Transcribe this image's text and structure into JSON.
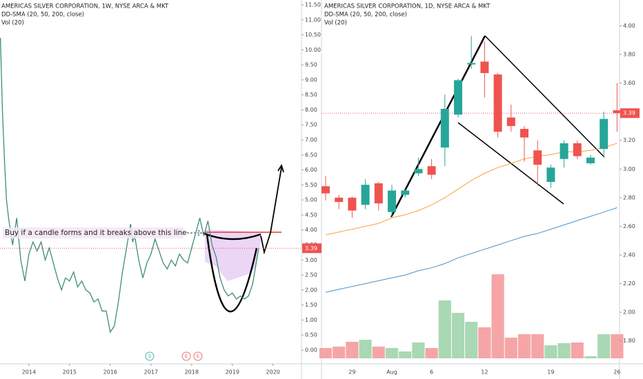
{
  "chart_data": [
    {
      "type": "line",
      "title": "AMERICAS SILVER CORPORATION, 1W, NYSE ARCA & MKT",
      "subtitle": "DD-SMA (20, 50, 200, close)",
      "indicator": "Vol (20)",
      "annotation": "Buy if a candle forms and it breaks above this line",
      "event_markers": [
        "S",
        "E",
        "E"
      ],
      "color": "#3d8c7a",
      "x": [
        2013.3,
        2013.35,
        2013.4,
        2013.45,
        2013.5,
        2013.6,
        2013.7,
        2013.8,
        2013.9,
        2014.0,
        2014.1,
        2014.2,
        2014.3,
        2014.4,
        2014.5,
        2014.6,
        2014.7,
        2014.8,
        2014.9,
        2015.0,
        2015.1,
        2015.2,
        2015.3,
        2015.4,
        2015.5,
        2015.6,
        2015.7,
        2015.8,
        2015.9,
        2016.0,
        2016.1,
        2016.2,
        2016.3,
        2016.4,
        2016.5,
        2016.55,
        2016.6,
        2016.7,
        2016.8,
        2016.9,
        2017.0,
        2017.1,
        2017.2,
        2017.3,
        2017.4,
        2017.5,
        2017.6,
        2017.7,
        2017.8,
        2017.9,
        2018.0,
        2018.1,
        2018.2,
        2018.25,
        2018.3,
        2018.4,
        2018.5,
        2018.6,
        2018.7,
        2018.8,
        2018.9,
        2019.0,
        2019.1,
        2019.2,
        2019.3,
        2019.4,
        2019.5,
        2019.6,
        2019.65
      ],
      "values": [
        10.4,
        8.0,
        6.3,
        5.0,
        4.4,
        3.5,
        4.4,
        3.0,
        2.3,
        3.2,
        3.6,
        3.3,
        3.6,
        3.0,
        3.4,
        2.9,
        2.4,
        2.0,
        2.4,
        2.3,
        2.6,
        2.1,
        2.3,
        2.0,
        1.9,
        1.6,
        1.7,
        1.3,
        1.3,
        0.6,
        0.8,
        1.6,
        2.6,
        3.4,
        4.2,
        3.6,
        3.8,
        3.0,
        2.4,
        2.9,
        3.2,
        3.7,
        3.3,
        2.9,
        2.7,
        3.0,
        2.8,
        3.2,
        3.0,
        2.9,
        3.4,
        3.9,
        4.4,
        4.1,
        3.8,
        4.3,
        3.5,
        3.1,
        2.4,
        2.0,
        1.8,
        1.9,
        1.7,
        1.8,
        1.7,
        1.8,
        2.2,
        3.0,
        3.39
      ],
      "xlim": [
        2013.29,
        2020.7
      ],
      "xticks": [
        2014,
        2015,
        2016,
        2017,
        2018,
        2019,
        2020
      ],
      "ylim": [
        -0.46,
        11.66
      ],
      "yticks": [
        {
          "value": 11.5,
          "label": "11.50"
        },
        {
          "value": 11,
          "label": "11.00"
        },
        {
          "value": 10.5,
          "label": "10.50"
        },
        {
          "value": 10,
          "label": "10.00"
        },
        {
          "value": 9.5,
          "label": "9.50"
        },
        {
          "value": 9,
          "label": "9.00"
        },
        {
          "value": 8.5,
          "label": "8.50"
        },
        {
          "value": 8,
          "label": "8.00"
        },
        {
          "value": 7.5,
          "label": "7.50"
        },
        {
          "value": 7,
          "label": "7.00"
        },
        {
          "value": 6.5,
          "label": "6.50"
        },
        {
          "value": 6,
          "label": "6.00"
        },
        {
          "value": 5.5,
          "label": "5.50"
        },
        {
          "value": 5,
          "label": "5.00"
        },
        {
          "value": 4.5,
          "label": "4.50"
        },
        {
          "value": 4,
          "label": "4.00"
        },
        {
          "value": 3.5,
          "label": "3.50"
        },
        {
          "value": 3,
          "label": "3.00"
        },
        {
          "value": 2.5,
          "label": "2.50"
        },
        {
          "value": 2,
          "label": "2.00"
        },
        {
          "value": 1.5,
          "label": "1.50"
        },
        {
          "value": 1,
          "label": "1.00"
        },
        {
          "value": 0.5,
          "label": "0.50"
        },
        {
          "value": 0,
          "label": "0.00"
        }
      ],
      "last_price": {
        "value": 3.39,
        "label": "3.39"
      }
    },
    {
      "type": "candlestick",
      "title": "AMERICAS SILVER CORPORATION, 1D, NYSE ARCA & MKT",
      "subtitle": "DD-SMA (20, 50, 200, close)",
      "indicator": "Vol (20)",
      "up_color": "#26a69a",
      "down_color": "#ef5350",
      "volume_up_color": "#a9d8b4",
      "volume_down_color": "#f6a5a7",
      "categories": [
        null,
        null,
        "29",
        null,
        null,
        "Aug",
        null,
        null,
        "6",
        null,
        null,
        null,
        "12",
        null,
        null,
        null,
        null,
        "19",
        null,
        null,
        null,
        null,
        "26"
      ],
      "open": [
        2.88,
        2.8,
        2.8,
        2.75,
        2.9,
        2.7,
        2.82,
        2.97,
        3.02,
        3.15,
        3.38,
        3.73,
        3.75,
        3.66,
        3.36,
        3.28,
        3.13,
        2.91,
        3.07,
        3.18,
        3.04,
        3.14,
        3.41
      ],
      "high": [
        2.95,
        2.82,
        2.81,
        2.93,
        2.91,
        2.89,
        2.86,
        3.08,
        3.07,
        3.52,
        3.63,
        3.93,
        3.89,
        3.67,
        3.45,
        3.3,
        3.2,
        3.03,
        3.2,
        3.2,
        3.1,
        3.4,
        3.6
      ],
      "low": [
        2.78,
        2.72,
        2.66,
        2.72,
        2.71,
        2.66,
        2.8,
        2.95,
        2.93,
        3.02,
        3.36,
        3.7,
        3.5,
        3.22,
        3.26,
        3.05,
        2.88,
        2.87,
        3.01,
        3.07,
        3.03,
        3.08,
        3.26
      ],
      "close": [
        2.83,
        2.77,
        2.71,
        2.89,
        2.76,
        2.85,
        2.85,
        3.0,
        2.96,
        3.42,
        3.62,
        3.74,
        3.67,
        3.26,
        3.3,
        3.22,
        3.03,
        3.01,
        3.18,
        3.09,
        3.08,
        3.35,
        3.39
      ],
      "series": [
        {
          "color": "#f7a338",
          "values": [
            2.54,
            2.56,
            2.58,
            2.6,
            2.62,
            2.66,
            2.68,
            2.71,
            2.75,
            2.8,
            2.86,
            2.92,
            2.97,
            3.01,
            3.04,
            3.07,
            3.09,
            3.1,
            3.12,
            3.12,
            3.13,
            3.15,
            3.18
          ]
        },
        {
          "color": "#4a90c8",
          "values": [
            2.14,
            2.16,
            2.18,
            2.2,
            2.22,
            2.24,
            2.26,
            2.29,
            2.31,
            2.34,
            2.38,
            2.41,
            2.44,
            2.47,
            2.5,
            2.53,
            2.55,
            2.58,
            2.61,
            2.64,
            2.67,
            2.7,
            2.73
          ]
        }
      ],
      "volume": [
        15,
        17,
        24,
        27,
        17,
        15,
        10,
        23,
        15,
        84,
        66,
        53,
        45,
        122,
        30,
        35,
        35,
        19,
        22,
        23,
        3,
        35,
        35
      ],
      "ylim": [
        1.64,
        4.18
      ],
      "yticks": [
        {
          "value": 4,
          "label": "4.00"
        },
        {
          "value": 3.8,
          "label": "3.80"
        },
        {
          "value": 3.6,
          "label": "3.60"
        },
        {
          "value": 3.2,
          "label": "3.20"
        },
        {
          "value": 3,
          "label": "3.00"
        },
        {
          "value": 2.8,
          "label": "2.80"
        },
        {
          "value": 2.6,
          "label": "2.60"
        },
        {
          "value": 2.4,
          "label": "2.40"
        },
        {
          "value": 2.2,
          "label": "2.20"
        },
        {
          "value": 2,
          "label": "2.00"
        },
        {
          "value": 1.8,
          "label": "1.80"
        }
      ],
      "last_price": {
        "value": 3.39,
        "label": "3.39"
      }
    }
  ]
}
